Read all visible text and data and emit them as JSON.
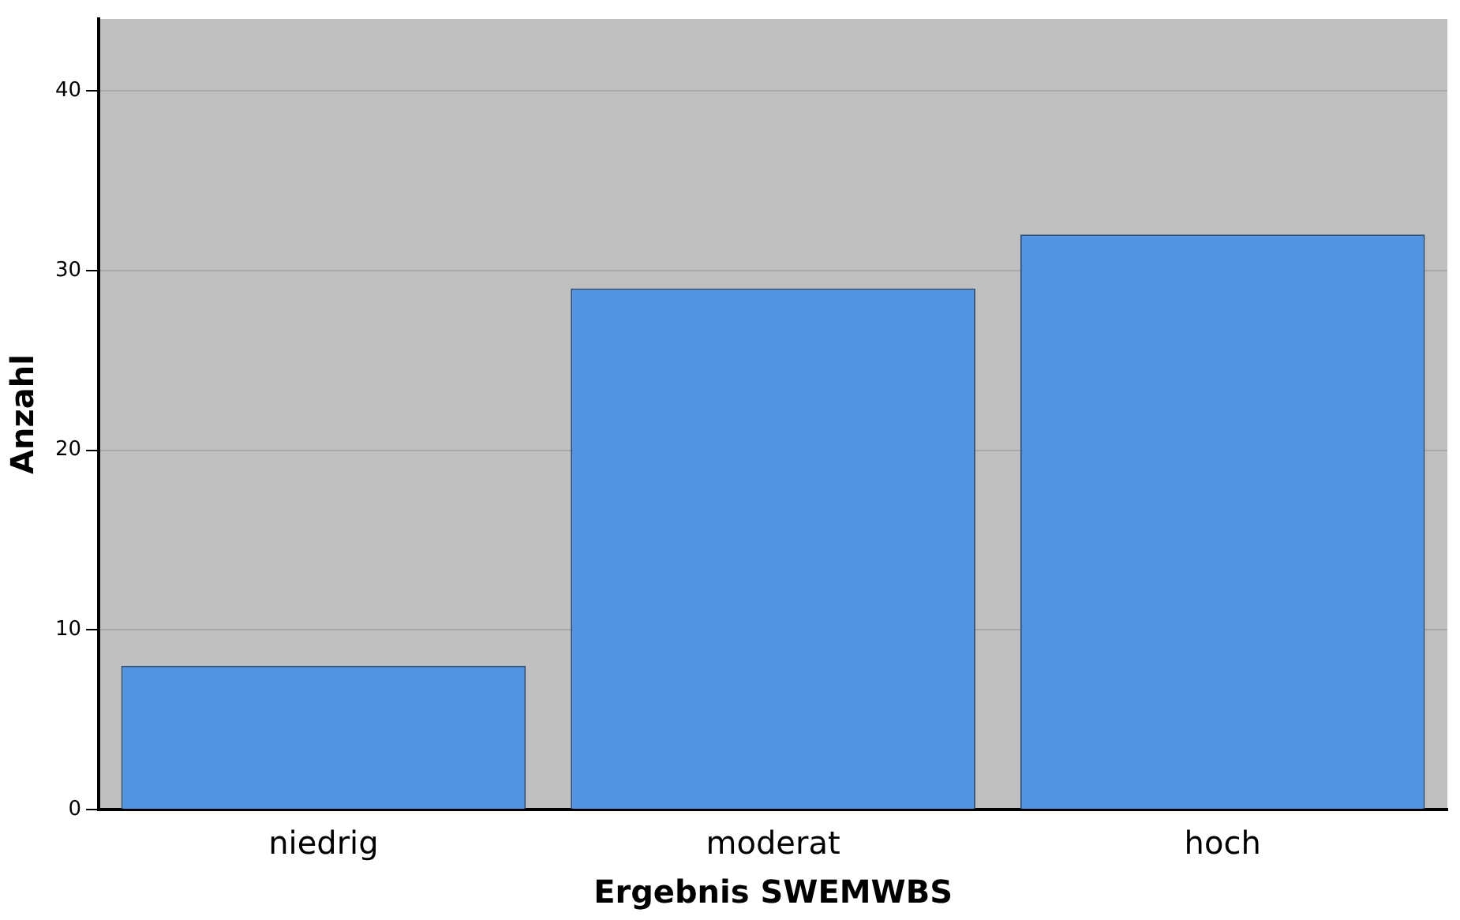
{
  "chart_data": {
    "type": "bar",
    "xlabel": "Ergebnis SWEMWBS",
    "ylabel": "Anzahl",
    "categories": [
      "niedrig",
      "moderat",
      "hoch"
    ],
    "values": [
      8,
      29,
      32
    ],
    "color": "#5294e2",
    "ylim": [
      0,
      44
    ],
    "yticks": [
      0,
      10,
      20,
      30,
      40
    ],
    "grid": "y",
    "legend": false
  }
}
